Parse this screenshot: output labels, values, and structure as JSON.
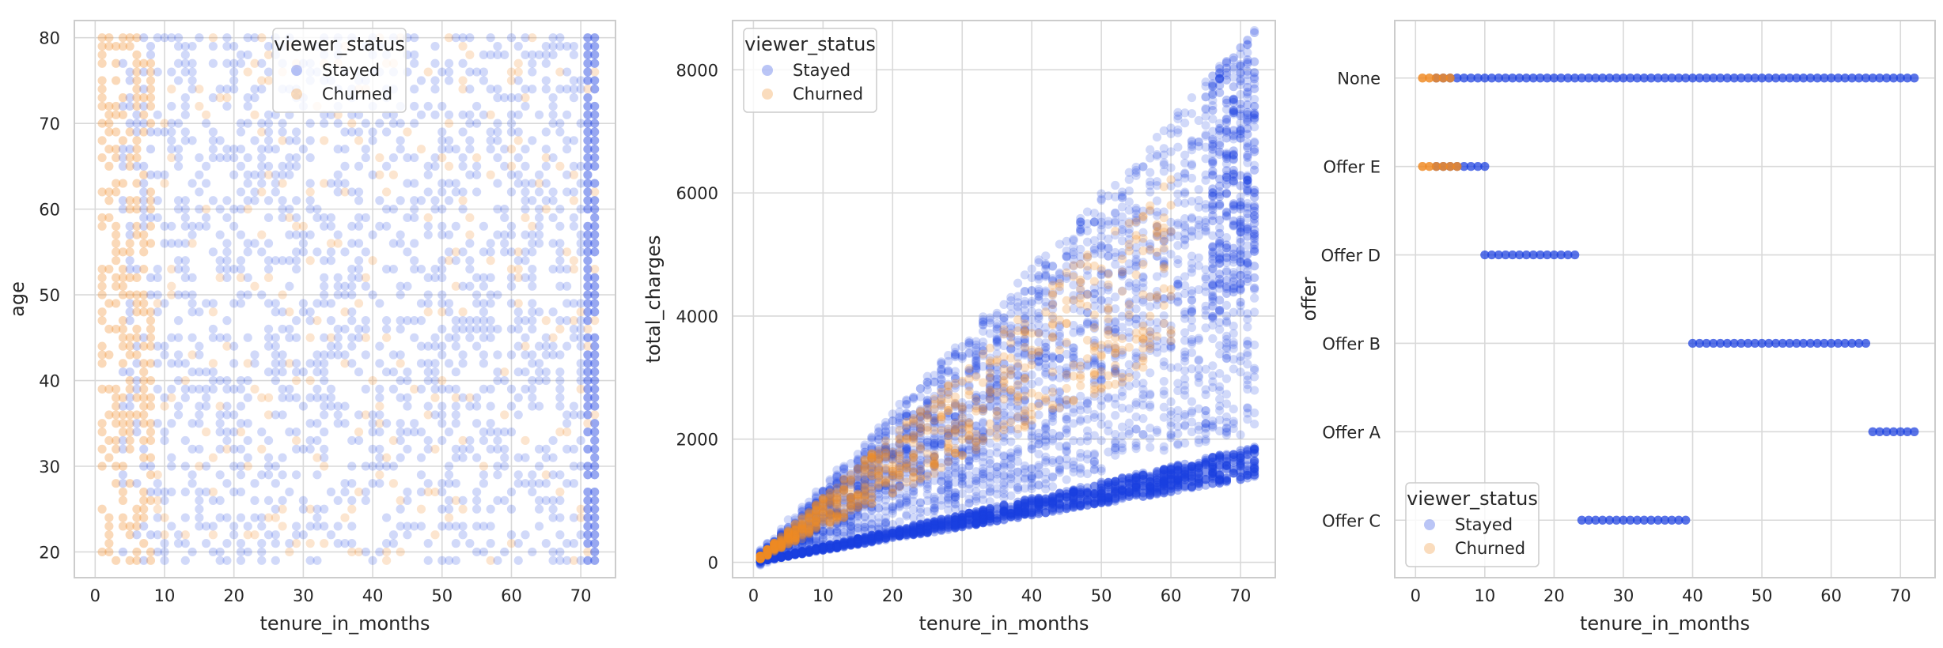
{
  "colors": {
    "stayed": "#1a3fe0",
    "churned": "#f08a24"
  },
  "chart_data": [
    {
      "type": "scatter",
      "xlabel": "tenure_in_months",
      "ylabel": "age",
      "xlim": [
        -3,
        75
      ],
      "ylim": [
        17,
        82
      ],
      "xticks": [
        0,
        10,
        20,
        30,
        40,
        50,
        60,
        70
      ],
      "yticks": [
        20,
        30,
        40,
        50,
        60,
        70,
        80
      ],
      "grid": true,
      "legend": {
        "title": "viewer_status",
        "placement": "top-center",
        "entries": [
          "Stayed",
          "Churned"
        ]
      },
      "series": [
        {
          "name": "Stayed",
          "x_range": [
            1,
            72
          ],
          "y_range": [
            19,
            80
          ],
          "description_values": "uniform grid of points, denser at tenure 72"
        },
        {
          "name": "Churned",
          "x_range": [
            1,
            72
          ],
          "y_range": [
            19,
            80
          ],
          "description_values": "concentrated at tenure 1-10"
        }
      ]
    },
    {
      "type": "scatter",
      "xlabel": "tenure_in_months",
      "ylabel": "total_charges",
      "xlim": [
        -3,
        75
      ],
      "ylim": [
        -250,
        8800
      ],
      "xticks": [
        0,
        10,
        20,
        30,
        40,
        50,
        60,
        70
      ],
      "yticks": [
        0,
        2000,
        4000,
        6000,
        8000
      ],
      "grid": true,
      "legend": {
        "title": "viewer_status",
        "placement": "top-left",
        "entries": [
          "Stayed",
          "Churned"
        ]
      },
      "series": [
        {
          "name": "Stayed",
          "points": [
            [
              1,
              60
            ],
            [
              5,
              300
            ],
            [
              10,
              700
            ],
            [
              20,
              1500
            ],
            [
              30,
              2500
            ],
            [
              40,
              3400
            ],
            [
              50,
              4300
            ],
            [
              60,
              5200
            ],
            [
              72,
              8600
            ],
            [
              72,
              1400
            ],
            [
              72,
              1900
            ],
            [
              40,
              900
            ],
            [
              20,
              450
            ],
            [
              60,
              1500
            ]
          ]
        },
        {
          "name": "Churned",
          "points": [
            [
              1,
              80
            ],
            [
              3,
              250
            ],
            [
              6,
              500
            ],
            [
              10,
              900
            ],
            [
              15,
              1300
            ],
            [
              20,
              1800
            ],
            [
              25,
              2400
            ],
            [
              30,
              2900
            ],
            [
              40,
              3900
            ],
            [
              50,
              5000
            ],
            [
              60,
              6200
            ]
          ]
        }
      ]
    },
    {
      "type": "scatter",
      "xlabel": "tenure_in_months",
      "ylabel": "offer",
      "xlim": [
        -3,
        75
      ],
      "categories": [
        "None",
        "Offer E",
        "Offer D",
        "Offer B",
        "Offer A",
        "Offer C"
      ],
      "xticks": [
        0,
        10,
        20,
        30,
        40,
        50,
        60,
        70
      ],
      "grid": true,
      "legend": {
        "title": "viewer_status",
        "placement": "bottom-left",
        "entries": [
          "Stayed",
          "Churned"
        ]
      },
      "series": [
        {
          "name": "Stayed",
          "ranges": {
            "None": [
              3,
              72
            ],
            "Offer E": [
              3,
              10
            ],
            "Offer D": [
              10,
              23
            ],
            "Offer B": [
              40,
              65
            ],
            "Offer A": [
              66,
              72
            ],
            "Offer C": [
              24,
              39
            ]
          }
        },
        {
          "name": "Churned",
          "ranges": {
            "None": [
              1,
              5
            ],
            "Offer E": [
              1,
              6
            ]
          }
        }
      ]
    }
  ]
}
